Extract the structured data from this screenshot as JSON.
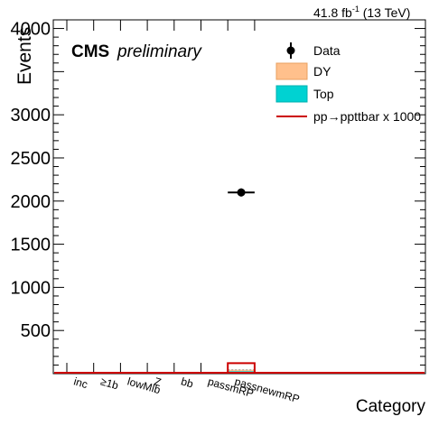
{
  "chart_data": {
    "type": "bar",
    "lumi_label": "41.8 fb",
    "lumi_sup": "-1",
    "lumi_energy": " (13 TeV)",
    "cms_label": "CMS",
    "cms_sub": "preliminary",
    "ylabel": "Events",
    "xlabel": "Category",
    "ylim": [
      0,
      4100
    ],
    "yticks": [
      500,
      1000,
      1500,
      2000,
      2500,
      3000
    ],
    "ytick_labels": [
      "500",
      "1000",
      "1500",
      "2000",
      "2500",
      "3000"
    ],
    "top_label": "4000",
    "categories": [
      "inc",
      "≥1b",
      "lowMlb",
      "Z",
      "bb",
      "passmRP",
      "passnewmRP"
    ],
    "series": [
      {
        "name": "Data",
        "values": [
          0,
          0,
          0,
          0,
          0,
          0,
          2100
        ],
        "errors": [
          0,
          0,
          0,
          0,
          0,
          0,
          46
        ],
        "color": "#000000"
      },
      {
        "name": "DY",
        "values": [
          0,
          0,
          0,
          0,
          0,
          0,
          16
        ],
        "color": "#ffc08c"
      },
      {
        "name": "Top",
        "values": [
          0,
          0,
          0,
          0,
          0,
          0,
          29
        ],
        "color": "#00d2d2"
      },
      {
        "name": "pp→ppttbar x 1000",
        "values": [
          0,
          0,
          0,
          0,
          0,
          0,
          122
        ],
        "color": "#cc0000"
      }
    ],
    "grid": false,
    "legend_position": "top-right"
  }
}
